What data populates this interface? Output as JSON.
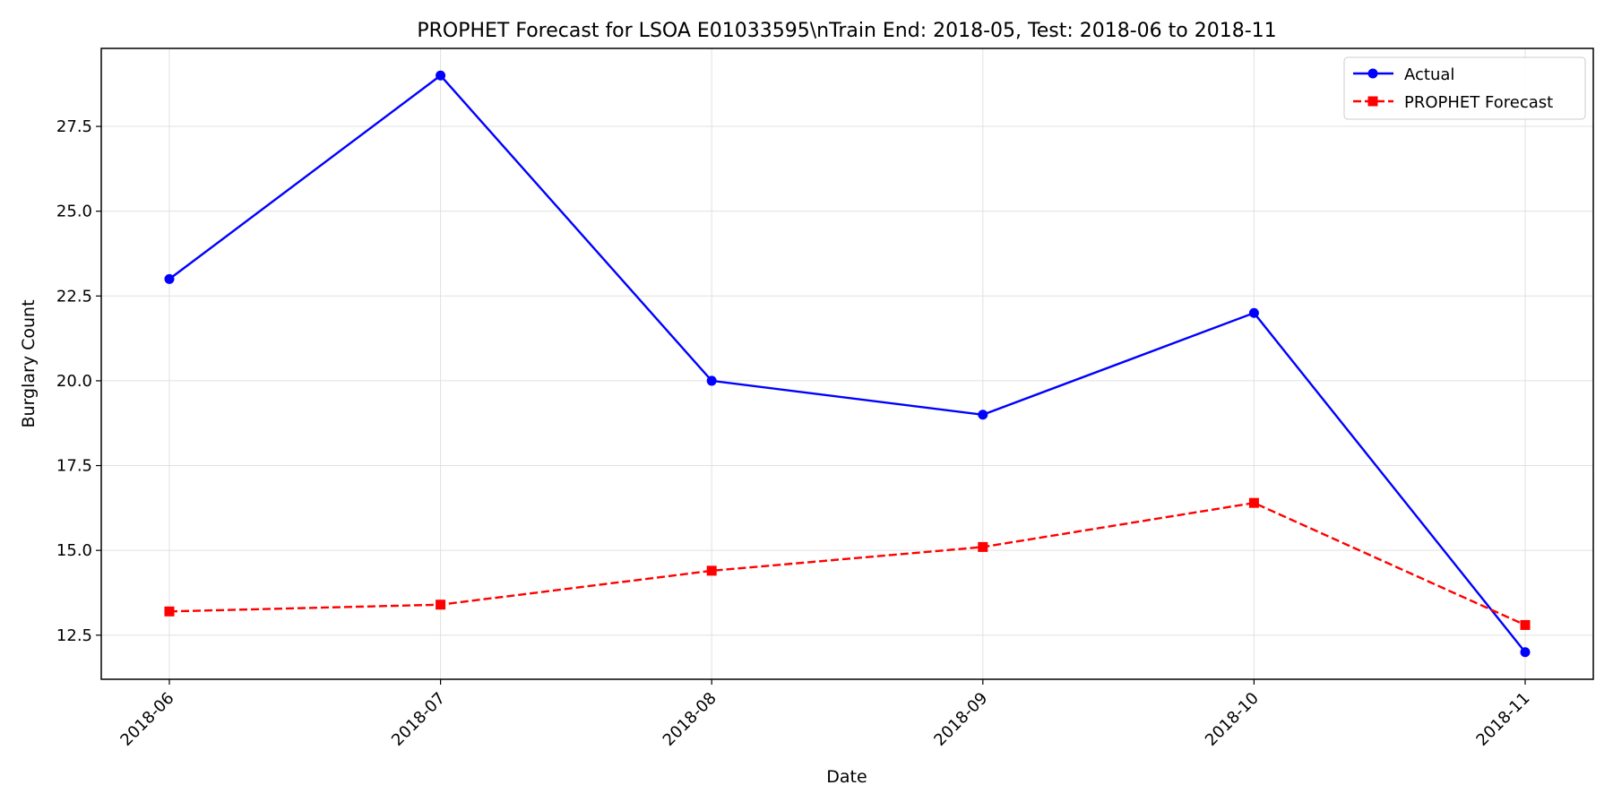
{
  "chart_data": {
    "type": "line",
    "title": "PROPHET Forecast for LSOA E01033595\\nTrain End: 2018-05, Test: 2018-06 to 2018-11",
    "xlabel": "Date",
    "ylabel": "Burglary Count",
    "x": [
      "2018-06",
      "2018-07",
      "2018-08",
      "2018-09",
      "2018-10",
      "2018-11"
    ],
    "x_ticks": [
      "2018-06",
      "2018-07",
      "2018-08",
      "2018-09",
      "2018-10",
      "2018-11"
    ],
    "ylim": [
      11.2,
      29.8
    ],
    "y_ticks": [
      12.5,
      15.0,
      17.5,
      20.0,
      22.5,
      25.0,
      27.5
    ],
    "y_tick_labels": [
      "12.5",
      "15.0",
      "17.5",
      "20.0",
      "22.5",
      "25.0",
      "27.5"
    ],
    "grid": true,
    "legend_position": "upper right",
    "series": [
      {
        "name": "Actual",
        "values": [
          23,
          29,
          20,
          19,
          22,
          12
        ],
        "color": "#0000ff",
        "marker": "circle",
        "line_style": "solid"
      },
      {
        "name": "PROPHET Forecast",
        "values": [
          13.2,
          13.4,
          14.4,
          15.1,
          16.4,
          12.8
        ],
        "color": "#ff0000",
        "marker": "square",
        "line_style": "dashed"
      }
    ]
  }
}
